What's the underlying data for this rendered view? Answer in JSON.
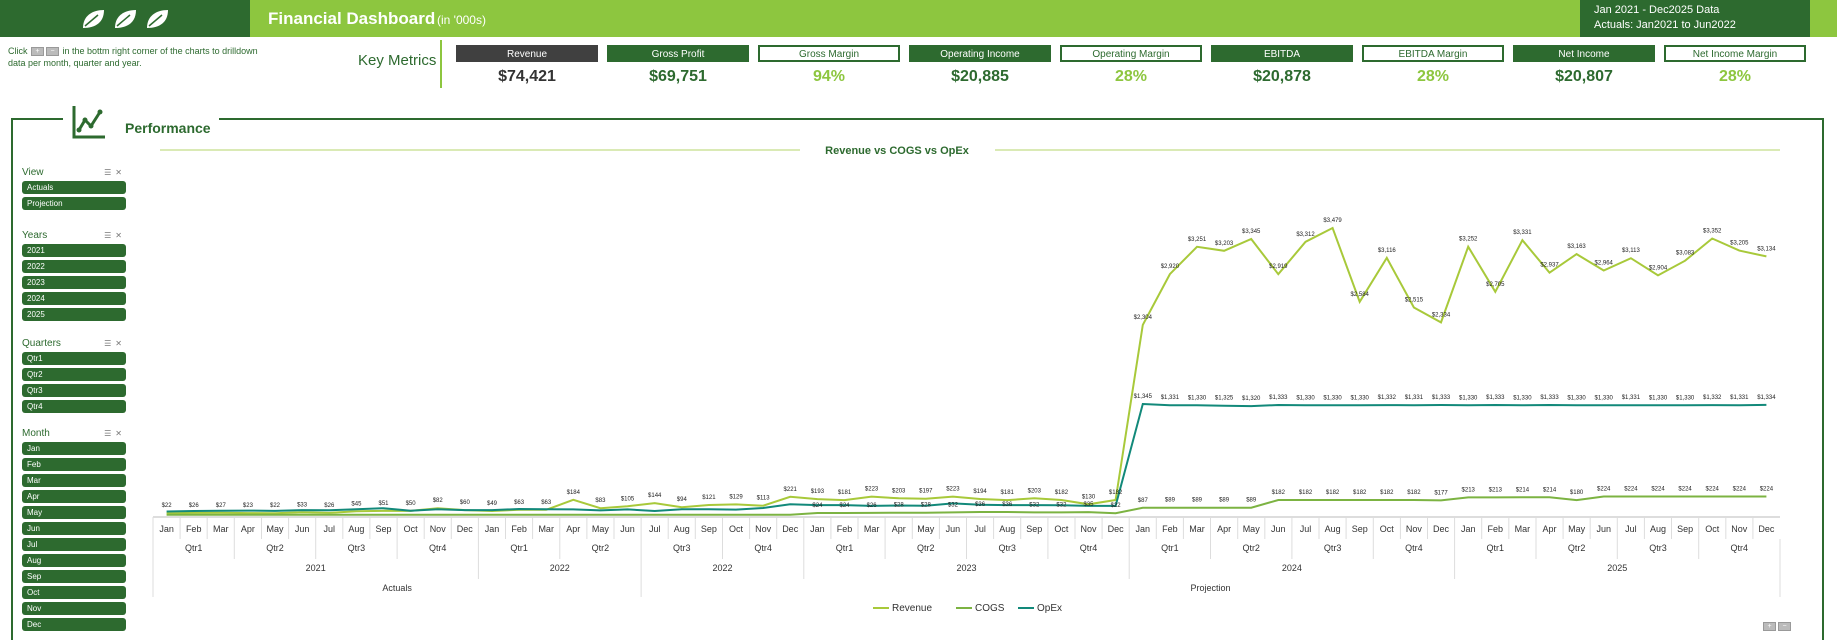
{
  "header": {
    "title": "Financial Dashboard",
    "subtitle": "(in '000s)",
    "date_range": "Jan 2021 - Dec2025 Data",
    "actuals_range": "Actuals: Jan2021 to Jun2022"
  },
  "hint": {
    "pre": "Click",
    "post": "in the bottm right corner of the charts to drilldown data per month, quarter and year."
  },
  "key_metrics_label": "Key Metrics",
  "metrics": [
    {
      "label": "Revenue",
      "value": "$74,421"
    },
    {
      "label": "Gross Profit",
      "value": "$69,751"
    },
    {
      "label": "Gross Margin",
      "value": "94%"
    },
    {
      "label": "Operating Income",
      "value": "$20,885"
    },
    {
      "label": "Operating Margin",
      "value": "28%"
    },
    {
      "label": "EBITDA",
      "value": "$20,878"
    },
    {
      "label": "EBITDA Margin",
      "value": "28%"
    },
    {
      "label": "Net Income",
      "value": "$20,807"
    },
    {
      "label": "Net Income Margin",
      "value": "28%"
    }
  ],
  "panel": {
    "title": "Performance"
  },
  "slicers": {
    "view": {
      "title": "View",
      "items": [
        "Actuals",
        "Projection"
      ]
    },
    "years": {
      "title": "Years",
      "items": [
        "2021",
        "2022",
        "2023",
        "2024",
        "2025"
      ]
    },
    "quarters": {
      "title": "Quarters",
      "items": [
        "Qtr1",
        "Qtr2",
        "Qtr3",
        "Qtr4"
      ]
    },
    "month": {
      "title": "Month",
      "items": [
        "Jan",
        "Feb",
        "Mar",
        "Apr",
        "May",
        "Jun",
        "Jul",
        "Aug",
        "Sep",
        "Oct",
        "Nov",
        "Dec"
      ]
    }
  },
  "colors": {
    "dark_green": "#2d6a2f",
    "light_green": "#8dc63f",
    "revenue": "#a8c93a",
    "cogs": "#7cb342",
    "opex": "#12897a"
  },
  "chart_data": {
    "type": "line",
    "title": "Revenue vs COGS vs OpEx",
    "months": [
      "Jan",
      "Feb",
      "Mar",
      "Apr",
      "May",
      "Jun",
      "Jul",
      "Aug",
      "Sep",
      "Oct",
      "Nov",
      "Dec",
      "Jan",
      "Feb",
      "Mar",
      "Apr",
      "May",
      "Jun",
      "Jul",
      "Aug",
      "Sep",
      "Oct",
      "Nov",
      "Dec",
      "Jan",
      "Feb",
      "Mar",
      "Apr",
      "May",
      "Jun",
      "Jul",
      "Aug",
      "Sep",
      "Oct",
      "Nov",
      "Dec",
      "Jan",
      "Feb",
      "Mar",
      "Apr",
      "May",
      "Jun",
      "Jul",
      "Aug",
      "Sep",
      "Oct",
      "Nov",
      "Dec",
      "Jan",
      "Feb",
      "Mar",
      "Apr",
      "May",
      "Jun",
      "Jul",
      "Aug",
      "Sep",
      "Oct",
      "Nov",
      "Dec"
    ],
    "quarter_groups": [
      {
        "label": "Qtr1",
        "span": 3
      },
      {
        "label": "Qtr2",
        "span": 3
      },
      {
        "label": "Qtr3",
        "span": 3
      },
      {
        "label": "Qtr4",
        "span": 3
      },
      {
        "label": "Qtr1",
        "span": 3
      },
      {
        "label": "Qtr2",
        "span": 3
      },
      {
        "label": "Qtr3",
        "span": 3
      },
      {
        "label": "Qtr4",
        "span": 3
      },
      {
        "label": "Qtr1",
        "span": 3
      },
      {
        "label": "Qtr2",
        "span": 3
      },
      {
        "label": "Qtr3",
        "span": 3
      },
      {
        "label": "Qtr4",
        "span": 3
      },
      {
        "label": "Qtr1",
        "span": 3
      },
      {
        "label": "Qtr2",
        "span": 3
      },
      {
        "label": "Qtr3",
        "span": 3
      },
      {
        "label": "Qtr4",
        "span": 3
      },
      {
        "label": "Qtr1",
        "span": 3
      },
      {
        "label": "Qtr2",
        "span": 3
      },
      {
        "label": "Qtr3",
        "span": 3
      },
      {
        "label": "Qtr4",
        "span": 3
      }
    ],
    "year_groups": [
      {
        "label": "2021",
        "span": 12
      },
      {
        "label": "2022",
        "span": 6
      },
      {
        "label": "2022",
        "span": 6
      },
      {
        "label": "2023",
        "span": 12
      },
      {
        "label": "2024",
        "span": 12
      },
      {
        "label": "2025",
        "span": 12
      }
    ],
    "view_groups": [
      {
        "label": "Actuals",
        "span": 18
      },
      {
        "label": "Projection",
        "span": 42
      }
    ],
    "series": [
      {
        "name": "Revenue",
        "values": [
          22,
          26,
          27,
          23,
          22,
          33,
          26,
          45,
          51,
          50,
          82,
          60,
          49,
          63,
          63,
          184,
          83,
          105,
          144,
          94,
          121,
          129,
          113,
          221,
          193,
          181,
          223,
          203,
          197,
          223,
          194,
          181,
          203,
          182,
          130,
          182,
          2304,
          2920,
          3251,
          3203,
          3345,
          2919,
          3312,
          3479,
          2584,
          3116,
          2515,
          2334,
          3252,
          2705,
          3331,
          2937,
          3163,
          2964,
          3113,
          2904,
          3083,
          3352,
          3205,
          3134
        ]
      },
      {
        "name": "COGS",
        "values": [
          2,
          3,
          3,
          3,
          3,
          3,
          3,
          3,
          3,
          3,
          3,
          3,
          3,
          3,
          3,
          3,
          3,
          3,
          3,
          3,
          3,
          3,
          3,
          3,
          24,
          24,
          26,
          28,
          28,
          32,
          36,
          36,
          32,
          32,
          35,
          22,
          87,
          89,
          89,
          89,
          89,
          182,
          182,
          182,
          182,
          182,
          182,
          177,
          213,
          213,
          214,
          214,
          180,
          224,
          224,
          224,
          224,
          224,
          224,
          224
        ]
      },
      {
        "name": "OpEx",
        "values": [
          42,
          48,
          52,
          53,
          50,
          60,
          58,
          69,
          82,
          52,
          70,
          60,
          60,
          73,
          69,
          68,
          56,
          68,
          48,
          70,
          70,
          66,
          85,
          130,
          120,
          120,
          110,
          115,
          112,
          140,
          125,
          120,
          120,
          117,
          110,
          110,
          1345,
          1331,
          1330,
          1325,
          1320,
          1333,
          1330,
          1330,
          1330,
          1332,
          1331,
          1333,
          1330,
          1333,
          1330,
          1333,
          1330,
          1330,
          1331,
          1330,
          1330,
          1332,
          1331,
          1334
        ]
      }
    ],
    "data_labels": {
      "Revenue": [
        "$22",
        "$26",
        "$27",
        "$23",
        "$22",
        "$33",
        "$26",
        "$45",
        "$51",
        "$50",
        "$82",
        "$60",
        "$49",
        "$63",
        "$63",
        "$184",
        "$83",
        "$105",
        "$144",
        "$94",
        "$121",
        "$129",
        "$113",
        "$221",
        "$193",
        "$181",
        "$223",
        "$203",
        "$197",
        "$223",
        "$194",
        "$181",
        "$203",
        "$182",
        "$130",
        "$182",
        "$2,304",
        "$2,920",
        "$3,251",
        "$3,203",
        "$3,345",
        "$2,919",
        "$3,312",
        "$3,479",
        "$2,584",
        "$3,116",
        "$2,515",
        "$2,334",
        "$3,252",
        "$2,705",
        "$3,331",
        "$2,937",
        "$3,163",
        "$2,964",
        "$3,113",
        "$2,904",
        "$3,083",
        "$3,352",
        "$3,205",
        "$3,134"
      ],
      "COGS": [
        "",
        "",
        "",
        "",
        "",
        "",
        "",
        "",
        "",
        "",
        "",
        "",
        "",
        "",
        "",
        "",
        "",
        "",
        "",
        "",
        "",
        "",
        "",
        "",
        "$24",
        "$24",
        "$26",
        "$28",
        "$28",
        "$32",
        "$36",
        "$36",
        "$32",
        "$32",
        "$35",
        "$22",
        "$87",
        "$89",
        "$89",
        "$89",
        "$89",
        "$182",
        "$182",
        "$182",
        "$182",
        "$182",
        "$182",
        "$177",
        "$213",
        "$213",
        "$214",
        "$214",
        "$180",
        "$224",
        "$224",
        "$224",
        "$224",
        "$224",
        "$224",
        "$224"
      ],
      "OpEx": [
        "",
        "",
        "",
        "",
        "",
        "",
        "",
        "",
        "",
        "",
        "",
        "",
        "",
        "",
        "",
        "",
        "",
        "",
        "",
        "",
        "",
        "",
        "",
        "",
        "",
        "",
        "",
        "",
        "",
        "",
        "",
        "",
        "",
        "",
        "",
        "",
        "$1,345",
        "$1,331",
        "$1,330",
        "$1,325",
        "$1,320",
        "$1,333",
        "$1,330",
        "$1,330",
        "$1,330",
        "$1,332",
        "$1,331",
        "$1,333",
        "$1,330",
        "$1,333",
        "$1,330",
        "$1,333",
        "$1,330",
        "$1,330",
        "$1,331",
        "$1,330",
        "$1,330",
        "$1,332",
        "$1,331",
        "$1,334"
      ]
    },
    "legend": [
      "Revenue",
      "COGS",
      "OpEx"
    ],
    "legend_position": "bottom",
    "ylim": [
      0,
      3600
    ],
    "grid": false
  }
}
